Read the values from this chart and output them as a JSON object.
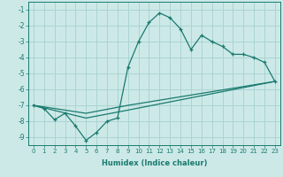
{
  "xlabel": "Humidex (Indice chaleur)",
  "background_color": "#cce9e8",
  "grid_color": "#aad4d2",
  "line_color": "#1a7a6e",
  "xlim": [
    -0.5,
    23.5
  ],
  "ylim": [
    -9.5,
    -0.5
  ],
  "xticks": [
    0,
    1,
    2,
    3,
    4,
    5,
    6,
    7,
    8,
    9,
    10,
    11,
    12,
    13,
    14,
    15,
    16,
    17,
    18,
    19,
    20,
    21,
    22,
    23
  ],
  "yticks": [
    -1,
    -2,
    -3,
    -4,
    -5,
    -6,
    -7,
    -8,
    -9
  ],
  "line1_x": [
    0,
    1,
    2,
    3,
    4,
    5,
    6,
    7,
    8,
    9,
    10,
    11,
    12,
    13,
    14,
    15,
    16,
    17,
    18,
    19,
    20,
    21,
    22,
    23
  ],
  "line1_y": [
    -7.0,
    -7.2,
    -7.9,
    -7.5,
    -8.3,
    -9.2,
    -8.7,
    -8.0,
    -7.8,
    -4.6,
    -3.0,
    -1.8,
    -1.2,
    -1.5,
    -2.2,
    -3.5,
    -2.6,
    -3.0,
    -3.3,
    -3.8,
    -3.8,
    -4.0,
    -4.3,
    -5.5
  ],
  "line2_x": [
    0,
    5,
    9,
    23
  ],
  "line2_y": [
    -7.0,
    -7.5,
    -7.0,
    -5.5
  ],
  "line3_x": [
    0,
    5,
    9,
    23
  ],
  "line3_y": [
    -7.0,
    -7.8,
    -7.3,
    -5.5
  ]
}
